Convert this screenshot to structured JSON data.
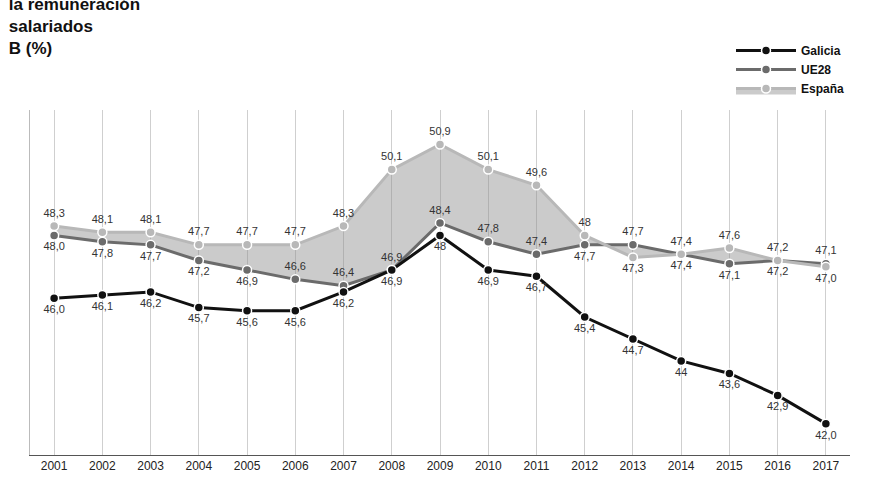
{
  "chart_data": {
    "type": "line",
    "title": "la remuneración\nsalariados\nB (%)",
    "categories": [
      "2001",
      "2002",
      "2003",
      "2004",
      "2005",
      "2006",
      "2007",
      "2008",
      "2009",
      "2010",
      "2011",
      "2012",
      "2013",
      "2014",
      "2015",
      "2016",
      "2017"
    ],
    "series": [
      {
        "name": "España",
        "color": "#b8b8b8",
        "marker": "circle",
        "values": [
          48.3,
          48.1,
          48.1,
          47.7,
          47.7,
          47.7,
          48.3,
          50.1,
          50.9,
          50.1,
          49.6,
          48,
          47.3,
          47.4,
          47.6,
          47.2,
          47.0
        ],
        "value_labels": [
          "48,3",
          "48,1",
          "48,1",
          "47,7",
          "47,7",
          "47,7",
          "48,3",
          "50,1",
          "50,9",
          "50,1",
          "49,6",
          "48",
          "47,3",
          "47,4",
          "47,6",
          "47,2",
          "47,0"
        ]
      },
      {
        "name": "UE28",
        "color": "#6b6b6b",
        "marker": "circle",
        "values": [
          48.0,
          47.8,
          47.7,
          47.2,
          46.9,
          46.6,
          46.4,
          46.9,
          48.4,
          47.8,
          47.4,
          47.7,
          47.7,
          47.4,
          47.1,
          47.2,
          47.1
        ],
        "value_labels": [
          "48,0",
          "47,8",
          "47,7",
          "47,2",
          "46,9",
          "46,6",
          "46,4",
          "46,9",
          "48,4",
          "47,8",
          "47,4",
          "47,7",
          "47,7",
          "47,4",
          "47,1",
          "47,2",
          "47,1"
        ]
      },
      {
        "name": "Galicia",
        "color": "#111111",
        "marker": "circle",
        "values": [
          46.0,
          46.1,
          46.2,
          45.7,
          45.6,
          45.6,
          46.2,
          46.9,
          48,
          46.9,
          46.7,
          45.4,
          44.7,
          44,
          43.6,
          42.9,
          42.0
        ],
        "value_labels": [
          "46,0",
          "46,1",
          "46,2",
          "45,7",
          "45,6",
          "45,6",
          "46,2",
          "46,9",
          "48",
          "46,9",
          "46,7",
          "45,4",
          "44,7",
          "44",
          "43,6",
          "42,9",
          "42,0"
        ]
      }
    ],
    "ylim": [
      41,
      52
    ],
    "tick_labels": "x",
    "grid": true,
    "legend": "top right",
    "data_labels": true
  }
}
